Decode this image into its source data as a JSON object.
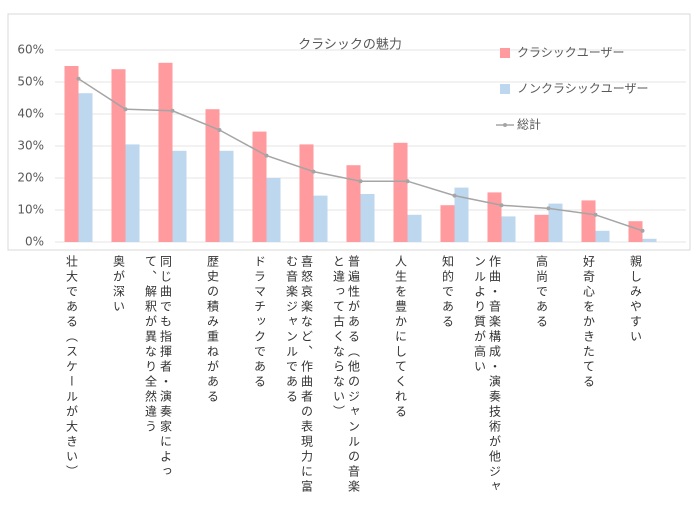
{
  "chart_data": {
    "type": "bar-line",
    "title": "クラシックの魅力",
    "categories": [
      "壮大である（スケールが大きい）",
      "奥が深い",
      "同じ曲でも指揮者・演奏家によって、解釈が異なり全然違う",
      "歴史の積み重ねがある",
      "ドラマチックである",
      "喜怒哀楽など、作曲者の表現力に富む音楽ジャンルである",
      "普遍性がある（他のジャンルの音楽と違って古くならない）",
      "人生を豊かにしてくれる",
      "知的である",
      "作曲・音楽構成・演奏技術が他ジャンルより質が高い",
      "高尚である",
      "好奇心をかきたてる",
      "親しみやすい"
    ],
    "series": [
      {
        "name": "クラシックユーザー",
        "kind": "bar",
        "color": "#ff9a9e",
        "values": [
          55,
          54,
          56,
          41.5,
          34.5,
          30.5,
          24,
          31,
          11.5,
          15.5,
          8.5,
          13,
          6.5
        ]
      },
      {
        "name": "ノンクラシックユーザー",
        "kind": "bar",
        "color": "#bdd7ee",
        "values": [
          46.5,
          30.5,
          28.5,
          28.5,
          20,
          14.5,
          15,
          8.5,
          17,
          8,
          12,
          3.5,
          1
        ]
      },
      {
        "name": "総計",
        "kind": "line",
        "color": "#a5a5a5",
        "values": [
          51,
          41.5,
          41,
          35,
          27,
          22,
          19,
          19,
          14.5,
          11.5,
          10.5,
          8.5,
          3.5
        ]
      }
    ],
    "ylim": [
      0,
      60
    ],
    "yticks": [
      {
        "value": 0,
        "label": "0%"
      },
      {
        "value": 10,
        "label": "10%"
      },
      {
        "value": 20,
        "label": "20%"
      },
      {
        "value": 30,
        "label": "30%"
      },
      {
        "value": 40,
        "label": "40%"
      },
      {
        "value": 50,
        "label": "50%"
      },
      {
        "value": 60,
        "label": "60%"
      }
    ],
    "grid": true
  }
}
